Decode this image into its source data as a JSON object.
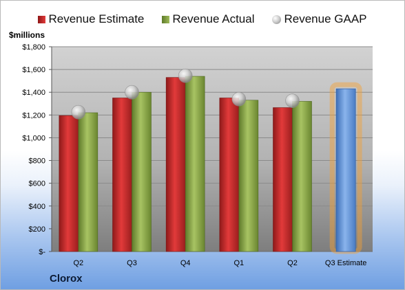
{
  "legend": {
    "estimate": "Revenue Estimate",
    "actual": "Revenue Actual",
    "gaap": "Revenue GAAP"
  },
  "units_label": "$millions",
  "company": "Clorox",
  "colors": {
    "estimate": "#c0282a",
    "actual": "#8aaa46",
    "projection": "#5b8fd6",
    "highlight": "#f5a033"
  },
  "chart_data": {
    "type": "bar",
    "categories": [
      "Q2",
      "Q3",
      "Q4",
      "Q1",
      "Q2",
      "Q3 Estimate"
    ],
    "series": [
      {
        "name": "Revenue Estimate",
        "values": [
          1195,
          1350,
          1530,
          1350,
          1265,
          1430
        ]
      },
      {
        "name": "Revenue Actual",
        "values": [
          1220,
          1400,
          1540,
          1330,
          1320,
          null
        ]
      },
      {
        "name": "Revenue GAAP",
        "values": [
          1225,
          1400,
          1545,
          1340,
          1325,
          null
        ]
      }
    ],
    "y_ticks": [
      "$-",
      "$200",
      "$400",
      "$600",
      "$800",
      "$1,000",
      "$1,200",
      "$1,400",
      "$1,600",
      "$1,800"
    ],
    "ylim": [
      0,
      1800
    ],
    "grid": true,
    "legend_position": "top"
  }
}
